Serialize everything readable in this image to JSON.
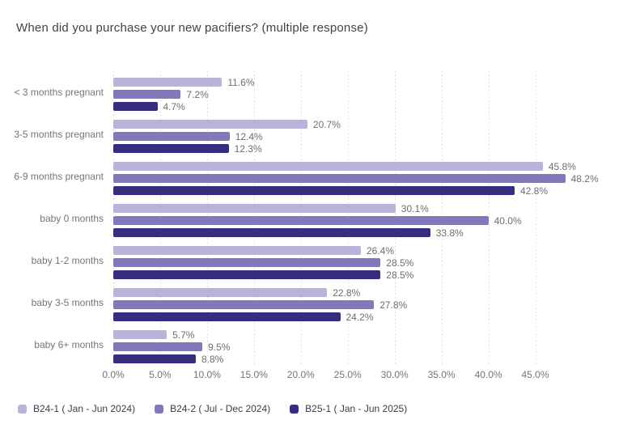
{
  "chart_data": {
    "type": "bar",
    "orientation": "horizontal",
    "title": "When did you purchase your new pacifiers? (multiple response)",
    "categories": [
      "< 3 months pregnant",
      "3-5 months pregnant",
      "6-9 months pregnant",
      "baby 0 months",
      "baby 1-2 months",
      "baby 3-5 months",
      "baby 6+ months"
    ],
    "series": [
      {
        "name": "B24-1 ( Jan - Jun 2024)",
        "color": "#bab2d8",
        "values": [
          11.6,
          20.7,
          45.8,
          30.1,
          26.4,
          22.8,
          5.7
        ]
      },
      {
        "name": "B24-2 ( Jul - Dec 2024)",
        "color": "#8279bd",
        "values": [
          7.2,
          12.4,
          48.2,
          40.0,
          28.5,
          27.8,
          9.5
        ]
      },
      {
        "name": "B25-1 ( Jan - Jun 2025)",
        "color": "#352d7d",
        "values": [
          4.7,
          12.3,
          42.8,
          33.8,
          28.5,
          24.2,
          8.8
        ]
      }
    ],
    "x_tick_labels": [
      "0.0%",
      "5.0%",
      "10.0%",
      "15.0%",
      "20.0%",
      "25.0%",
      "30.0%",
      "35.0%",
      "40.0%",
      "45.0%"
    ],
    "x_tick_step_pct": 5,
    "xlim": [
      0,
      49.7
    ],
    "value_label_suffix": "%",
    "grid": "dotted-vertical",
    "legend_position": "bottom-left",
    "colors": {
      "background": "#ffffff",
      "title_text": "#3d434c",
      "axis_text": "#757575",
      "value_label_text": "#6e6e6e",
      "legend_text": "#3a3e44",
      "gridline": "#d8d8d8"
    }
  }
}
